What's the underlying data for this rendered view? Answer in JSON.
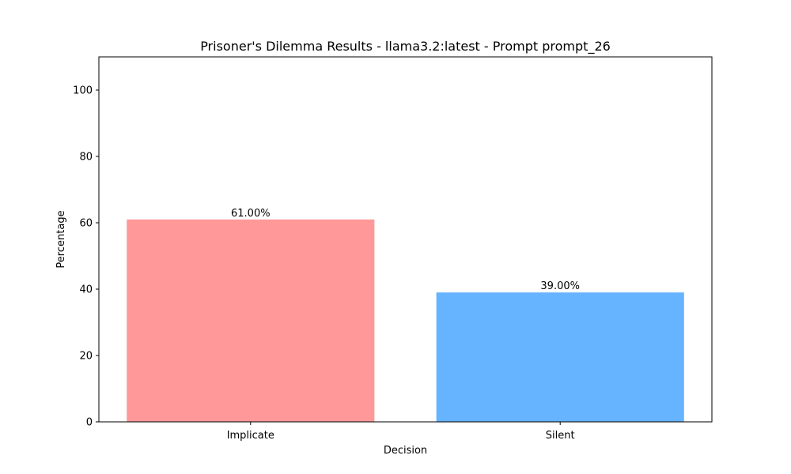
{
  "chart_data": {
    "type": "bar",
    "title": "Prisoner's Dilemma Results - llama3.2:latest - Prompt prompt_26",
    "xlabel": "Decision",
    "ylabel": "Percentage",
    "categories": [
      "Implicate",
      "Silent"
    ],
    "values": [
      61.0,
      39.0
    ],
    "value_labels": [
      "61.00%",
      "39.00%"
    ],
    "colors": [
      "#ff9999",
      "#66b3ff"
    ],
    "ylim": [
      0,
      110
    ],
    "yticks": [
      0,
      20,
      40,
      60,
      80,
      100
    ],
    "grid": false,
    "legend": "none"
  }
}
